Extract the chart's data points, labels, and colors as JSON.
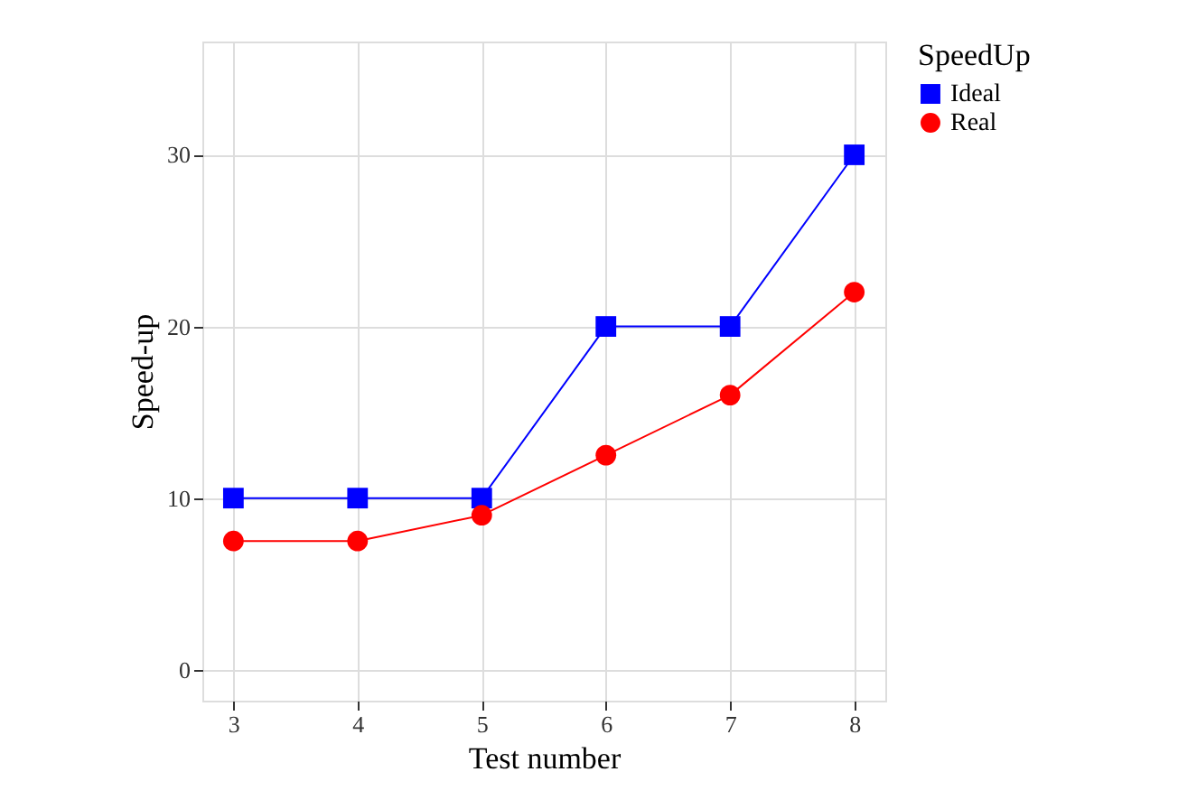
{
  "chart_data": {
    "type": "line",
    "xlabel": "Test number",
    "ylabel": "Speed-up",
    "legend_title": "SpeedUp",
    "x": [
      3,
      4,
      5,
      6,
      7,
      8
    ],
    "series": [
      {
        "name": "Ideal",
        "color": "#0000ff",
        "marker": "square",
        "values": [
          10,
          10,
          10,
          20,
          20,
          30
        ]
      },
      {
        "name": "Real",
        "color": "#ff0000",
        "marker": "circle",
        "values": [
          7.5,
          7.5,
          9,
          12.5,
          16,
          22
        ]
      }
    ],
    "xlim": [
      2.75,
      8.25
    ],
    "xticks": [
      3,
      4,
      5,
      6,
      7,
      8
    ],
    "ylim": [
      -1.8,
      36.6
    ],
    "yticks": [
      0,
      10,
      20,
      30
    ],
    "grid": true,
    "legend": "right",
    "line_style": "solid"
  }
}
